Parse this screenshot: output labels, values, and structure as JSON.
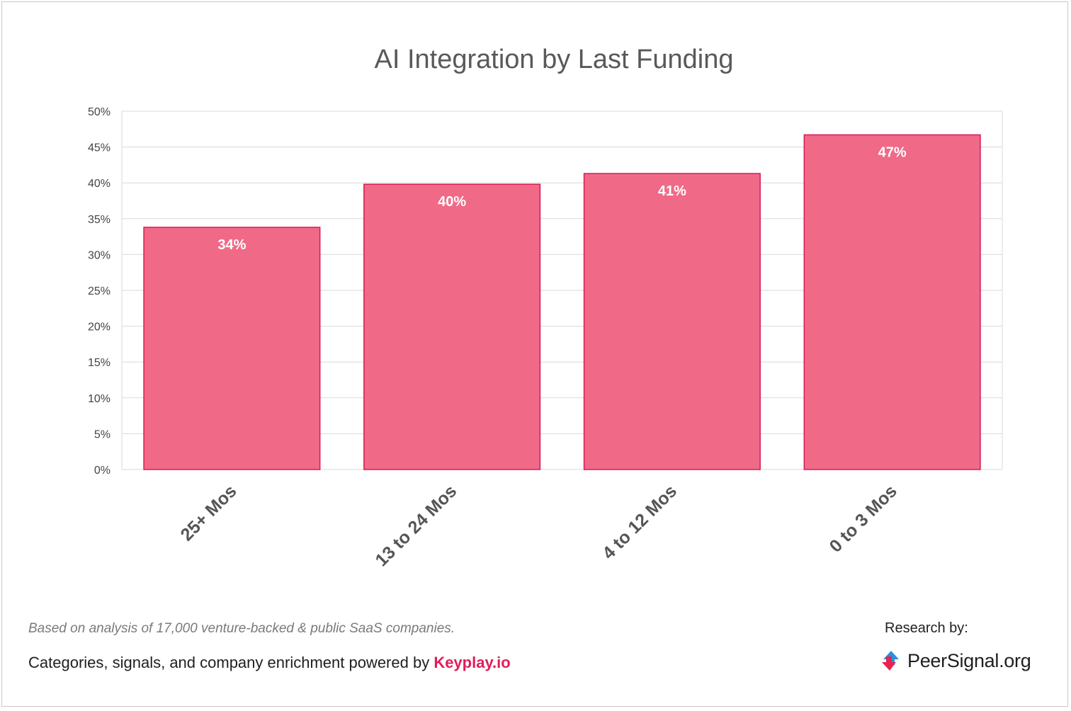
{
  "chart_data": {
    "type": "bar",
    "title": "AI Integration by Last Funding",
    "categories": [
      "25+ Mos",
      "13 to 24 Mos",
      "4 to 12 Mos",
      "0 to 3 Mos"
    ],
    "values": [
      33.8,
      39.8,
      41.3,
      46.7
    ],
    "data_labels": [
      "34%",
      "40%",
      "41%",
      "47%"
    ],
    "ylim": [
      0,
      50
    ],
    "y_ticks": [
      0,
      5,
      10,
      15,
      20,
      25,
      30,
      35,
      40,
      45,
      50
    ],
    "y_tick_labels": [
      "0%",
      "5%",
      "10%",
      "15%",
      "20%",
      "25%",
      "30%",
      "35%",
      "40%",
      "45%",
      "50%"
    ],
    "xlabel": "",
    "ylabel": "",
    "grid": true,
    "legend": "none",
    "bar_color": "#f06a88",
    "bar_edge_color": "#d81b55"
  },
  "footer": {
    "note": "Based on analysis of 17,000 venture-backed & public SaaS companies.",
    "credit_text": "Categories, signals, and company enrichment powered by ",
    "credit_brand": "Keyplay.io",
    "research_label": "Research by:",
    "logo_text": "PeerSignal.org",
    "logo_icon": "peersignal-arrows-icon"
  }
}
